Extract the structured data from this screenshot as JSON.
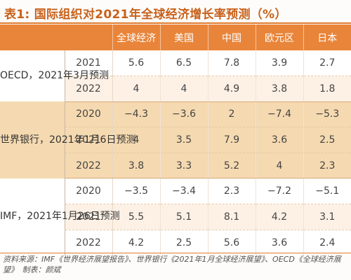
{
  "title": "表1: 国际组织对2021年全球经济增长率预测（%）",
  "columns": [
    "全球经济",
    "美国",
    "中国",
    "欧元区",
    "日本"
  ],
  "groups": [
    {
      "org": "OECD，2021年3月预测",
      "rows": [
        {
          "year": "2021",
          "values": [
            "5.6",
            "6.5",
            "7.8",
            "3.9",
            "2.7"
          ]
        },
        {
          "year": "2022",
          "values": [
            "4",
            "4",
            "4.9",
            "3.8",
            "1.8"
          ]
        }
      ]
    },
    {
      "org": "世界银行，2021年1月6日预测",
      "rows": [
        {
          "year": "2020",
          "values": [
            "−4.3",
            "−3.6",
            "2",
            "−7.4",
            "−5.3"
          ]
        },
        {
          "year": "2021",
          "values": [
            "4",
            "3.5",
            "7.9",
            "3.6",
            "2.5"
          ]
        },
        {
          "year": "2022",
          "values": [
            "3.8",
            "3.3",
            "5.2",
            "4",
            "2.3"
          ]
        }
      ]
    },
    {
      "org": "IMF，2021年1月26日预测",
      "rows": [
        {
          "year": "2020",
          "values": [
            "−3.5",
            "−3.4",
            "2.3",
            "−7.2",
            "−5.1"
          ]
        },
        {
          "year": "2021",
          "values": [
            "5.5",
            "5.1",
            "8.1",
            "4.2",
            "3.1"
          ]
        },
        {
          "year": "2022",
          "values": [
            "4.2",
            "2.5",
            "5.6",
            "3.6",
            "2.4"
          ]
        }
      ]
    }
  ],
  "source": "资料来源：IMF《世界经济展望报告》、世界银行《2021年1月全球经济展望》、OECD《全球经济展望》　制表：颜斌",
  "colors": {
    "accent": "#e9853a",
    "title": "#c8611b",
    "highlight_band": "#f5d9b0"
  }
}
